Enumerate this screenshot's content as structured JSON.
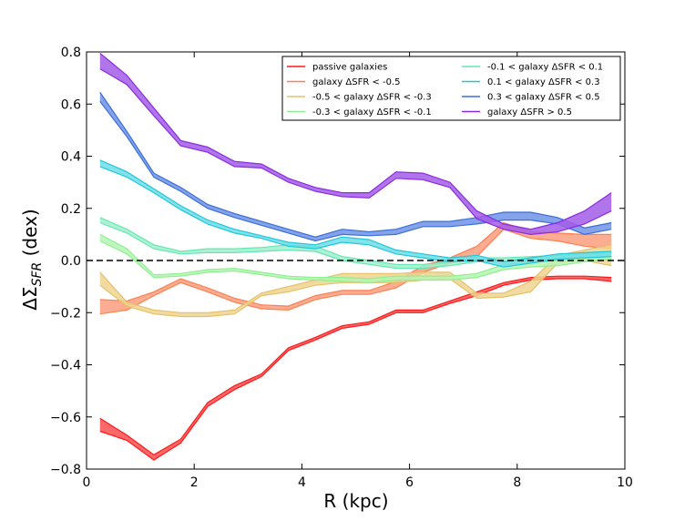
{
  "chart_data": {
    "type": "line",
    "title": "",
    "xlabel": "R (kpc)",
    "ylabel_prefix": "ΔΣ",
    "ylabel_subscript": "SFR",
    "ylabel_suffix": " (dex)",
    "xlim": [
      0,
      10
    ],
    "ylim": [
      -0.8,
      0.8
    ],
    "xticks": [
      0,
      2,
      4,
      6,
      8,
      10
    ],
    "xtick_labels": [
      "0",
      "2",
      "4",
      "6",
      "8",
      "10"
    ],
    "yticks": [
      -0.8,
      -0.6,
      -0.4,
      -0.2,
      0.0,
      0.2,
      0.4,
      0.6,
      0.8
    ],
    "ytick_labels": [
      "−0.8",
      "−0.6",
      "−0.4",
      "−0.2",
      "0.0",
      "0.2",
      "0.4",
      "0.6",
      "0.8"
    ],
    "zero_line": true,
    "legend_position": "top-right",
    "x": [
      0.25,
      0.75,
      1.25,
      1.75,
      2.25,
      2.75,
      3.25,
      3.75,
      4.25,
      4.75,
      5.25,
      5.75,
      6.25,
      6.75,
      7.25,
      7.75,
      8.25,
      8.75,
      9.25,
      9.75
    ],
    "series": [
      {
        "name": "passive galaxies",
        "color": "#ff1a1a",
        "fill": "#ff4d4d",
        "lower": [
          -0.655,
          -0.69,
          -0.765,
          -0.7,
          -0.56,
          -0.495,
          -0.445,
          -0.345,
          -0.305,
          -0.26,
          -0.245,
          -0.2,
          -0.2,
          -0.165,
          -0.135,
          -0.095,
          -0.075,
          -0.07,
          -0.07,
          -0.08
        ],
        "upper": [
          -0.605,
          -0.67,
          -0.745,
          -0.685,
          -0.545,
          -0.48,
          -0.435,
          -0.335,
          -0.295,
          -0.25,
          -0.235,
          -0.19,
          -0.19,
          -0.155,
          -0.12,
          -0.085,
          -0.065,
          -0.06,
          -0.06,
          -0.065
        ]
      },
      {
        "name": "galaxy ΔSFR < -0.5",
        "color": "#ff7f50",
        "fill": "#fa9d7e",
        "lower": [
          -0.205,
          -0.19,
          -0.135,
          -0.085,
          -0.12,
          -0.16,
          -0.185,
          -0.19,
          -0.15,
          -0.13,
          -0.13,
          -0.105,
          -0.045,
          -0.01,
          0.015,
          0.12,
          0.085,
          0.075,
          0.055,
          0.045
        ],
        "upper": [
          -0.15,
          -0.155,
          -0.12,
          -0.07,
          -0.105,
          -0.145,
          -0.17,
          -0.175,
          -0.135,
          -0.115,
          -0.115,
          -0.08,
          -0.02,
          0.01,
          0.055,
          0.145,
          0.11,
          0.105,
          0.1,
          0.1
        ]
      },
      {
        "name": "-0.5 < galaxy ΔSFR < -0.3",
        "color": "#e6c06a",
        "fill": "#efd590",
        "lower": [
          -0.095,
          -0.175,
          -0.205,
          -0.215,
          -0.215,
          -0.205,
          -0.135,
          -0.12,
          -0.095,
          -0.085,
          -0.085,
          -0.085,
          -0.075,
          -0.07,
          -0.145,
          -0.14,
          -0.12,
          -0.01,
          0.0,
          -0.02
        ],
        "upper": [
          -0.045,
          -0.16,
          -0.19,
          -0.2,
          -0.2,
          -0.19,
          -0.125,
          -0.1,
          -0.075,
          -0.05,
          -0.05,
          -0.05,
          -0.045,
          -0.045,
          -0.125,
          -0.125,
          -0.08,
          0.02,
          0.04,
          0.06
        ]
      },
      {
        "name": "-0.3 < galaxy ΔSFR < -0.1",
        "color": "#8ef08e",
        "fill": "#b5f5b5",
        "lower": [
          0.075,
          0.025,
          -0.065,
          -0.06,
          -0.045,
          -0.04,
          -0.055,
          -0.07,
          -0.075,
          -0.08,
          -0.085,
          -0.075,
          -0.075,
          -0.075,
          -0.065,
          -0.035,
          -0.025,
          -0.02,
          -0.005,
          0.005
        ],
        "upper": [
          0.1,
          0.045,
          -0.055,
          -0.05,
          -0.035,
          -0.03,
          -0.045,
          -0.06,
          -0.065,
          -0.065,
          -0.07,
          -0.06,
          -0.06,
          -0.06,
          -0.05,
          -0.015,
          -0.005,
          0.0,
          0.02,
          0.035
        ]
      },
      {
        "name": "-0.1 < galaxy ΔSFR < 0.1",
        "color": "#66e6b3",
        "fill": "#9ff0cc",
        "lower": [
          0.145,
          0.105,
          0.045,
          0.025,
          0.03,
          0.03,
          0.035,
          0.04,
          0.035,
          0.0,
          -0.015,
          -0.03,
          -0.03,
          -0.02,
          -0.005,
          -0.005,
          0.0,
          0.005,
          0.01,
          0.015
        ],
        "upper": [
          0.165,
          0.12,
          0.06,
          0.035,
          0.045,
          0.045,
          0.05,
          0.06,
          0.055,
          0.015,
          0.0,
          -0.015,
          -0.015,
          -0.005,
          0.01,
          0.01,
          0.015,
          0.02,
          0.025,
          0.03
        ]
      },
      {
        "name": "0.1 < galaxy ΔSFR < 0.3",
        "color": "#1ec8d8",
        "fill": "#6fdde6",
        "lower": [
          0.36,
          0.32,
          0.26,
          0.195,
          0.14,
          0.105,
          0.085,
          0.055,
          0.045,
          0.07,
          0.06,
          0.025,
          0.01,
          -0.005,
          0.0,
          -0.025,
          -0.01,
          0.005,
          0.01,
          0.015
        ],
        "upper": [
          0.385,
          0.34,
          0.275,
          0.21,
          0.155,
          0.12,
          0.095,
          0.07,
          0.06,
          0.09,
          0.08,
          0.04,
          0.025,
          0.01,
          0.02,
          -0.005,
          0.01,
          0.025,
          0.03,
          0.035
        ]
      },
      {
        "name": "0.3 < galaxy ΔSFR < 0.5",
        "color": "#3b6fd8",
        "fill": "#6e93e6",
        "lower": [
          0.61,
          0.475,
          0.32,
          0.265,
          0.2,
          0.165,
          0.135,
          0.105,
          0.075,
          0.1,
          0.095,
          0.1,
          0.13,
          0.13,
          0.14,
          0.155,
          0.155,
          0.14,
          0.1,
          0.12
        ],
        "upper": [
          0.645,
          0.495,
          0.335,
          0.28,
          0.215,
          0.18,
          0.15,
          0.12,
          0.09,
          0.12,
          0.11,
          0.12,
          0.15,
          0.15,
          0.165,
          0.185,
          0.185,
          0.165,
          0.125,
          0.145
        ]
      },
      {
        "name": "galaxy ΔSFR > 0.5",
        "color": "#8a2be2",
        "fill": "#a35de8",
        "lower": [
          0.735,
          0.675,
          0.555,
          0.44,
          0.415,
          0.36,
          0.355,
          0.3,
          0.265,
          0.245,
          0.24,
          0.315,
          0.31,
          0.28,
          0.16,
          0.12,
          0.1,
          0.11,
          0.14,
          0.19
        ],
        "upper": [
          0.795,
          0.71,
          0.585,
          0.46,
          0.435,
          0.38,
          0.37,
          0.315,
          0.28,
          0.26,
          0.26,
          0.34,
          0.335,
          0.3,
          0.19,
          0.14,
          0.12,
          0.145,
          0.19,
          0.26
        ]
      }
    ]
  }
}
